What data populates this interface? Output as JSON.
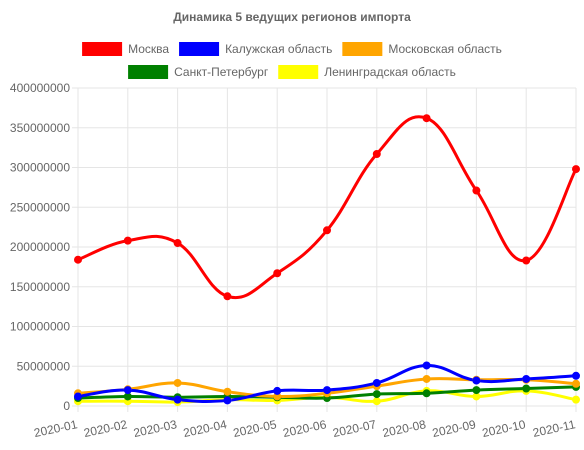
{
  "chart_data": {
    "type": "line",
    "title": "Динамика 5 ведущих регионов импорта",
    "xlabel": "",
    "ylabel": "",
    "ylim": [
      0,
      400000000
    ],
    "y_ticks": [
      "0",
      "50000000",
      "100000000",
      "150000000",
      "200000000",
      "250000000",
      "300000000",
      "350000000",
      "400000000"
    ],
    "categories": [
      "2020-01",
      "2020-02",
      "2020-03",
      "2020-04",
      "2020-05",
      "2020-06",
      "2020-07",
      "2020-08",
      "2020-09",
      "2020-10",
      "2020-11"
    ],
    "grid": true,
    "legend_position": "top",
    "series": [
      {
        "name": "Москва",
        "color": "#ff0000",
        "values": [
          184000000,
          208000000,
          205000000,
          138000000,
          167000000,
          221000000,
          317000000,
          362000000,
          271000000,
          183000000,
          298000000
        ]
      },
      {
        "name": "Калужская область",
        "color": "#0000ff",
        "values": [
          12000000,
          20000000,
          8000000,
          7000000,
          19000000,
          20000000,
          29000000,
          51000000,
          32000000,
          34000000,
          38000000
        ]
      },
      {
        "name": "Московская область",
        "color": "#ffa500",
        "values": [
          16000000,
          21000000,
          29000000,
          18000000,
          12000000,
          16000000,
          25000000,
          34000000,
          33000000,
          33000000,
          28000000
        ]
      },
      {
        "name": "Санкт-Петербург",
        "color": "#008000",
        "values": [
          10000000,
          12000000,
          11000000,
          12000000,
          11000000,
          10000000,
          15000000,
          16000000,
          20000000,
          22000000,
          24000000
        ]
      },
      {
        "name": "Ленинградская область",
        "color": "#ffff00",
        "values": [
          6000000,
          6000000,
          5000000,
          8000000,
          7000000,
          11000000,
          6000000,
          19000000,
          12000000,
          19000000,
          8000000
        ]
      }
    ]
  }
}
